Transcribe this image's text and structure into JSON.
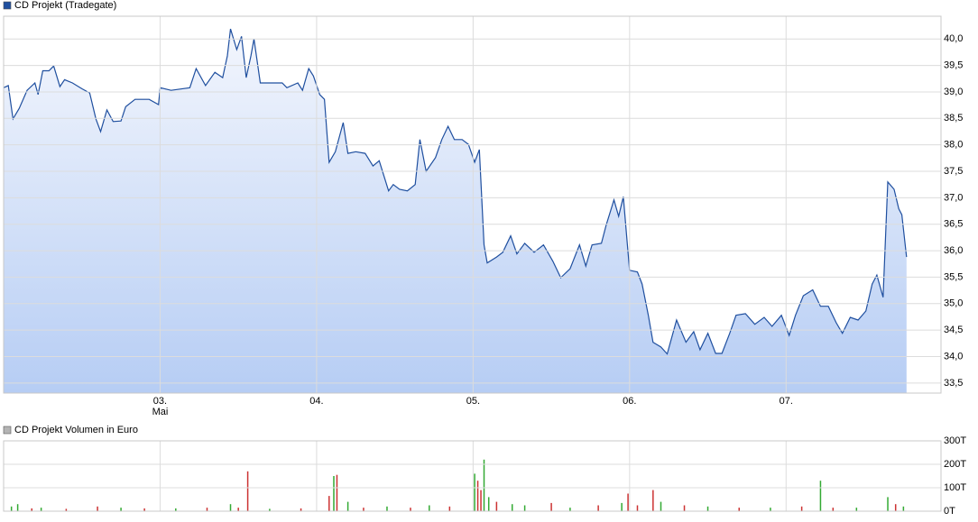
{
  "chart_data": [
    {
      "type": "area",
      "series": [
        {
          "name": "CD Projekt (Tradegate)",
          "color": "#1f4f9f",
          "x": [
            2.0,
            2.03,
            2.06,
            2.1,
            2.15,
            2.2,
            2.22,
            2.25,
            2.29,
            2.32,
            2.36,
            2.39,
            2.44,
            2.5,
            2.55,
            2.59,
            2.62,
            2.66,
            2.7,
            2.75,
            2.78,
            2.84,
            2.93,
            2.99,
            3.0,
            3.07,
            3.19,
            3.23,
            3.29,
            3.35,
            3.4,
            3.43,
            3.45,
            3.49,
            3.52,
            3.55,
            3.58,
            3.6,
            3.64,
            3.71,
            3.78,
            3.81,
            3.88,
            3.91,
            3.95,
            3.98,
            4.02,
            4.05,
            4.08,
            4.12,
            4.17,
            4.2,
            4.25,
            4.31,
            4.36,
            4.4,
            4.46,
            4.49,
            4.53,
            4.58,
            4.63,
            4.66,
            4.7,
            4.76,
            4.8,
            4.84,
            4.88,
            4.93,
            4.97,
            5.01,
            5.04,
            5.07,
            5.09,
            5.15,
            5.19,
            5.24,
            5.28,
            5.33,
            5.39,
            5.45,
            5.51,
            5.56,
            5.62,
            5.68,
            5.72,
            5.76,
            5.82,
            5.85,
            5.9,
            5.93,
            5.96,
            5.98,
            6.0,
            6.05,
            6.08,
            6.12,
            6.15,
            6.2,
            6.24,
            6.3,
            6.36,
            6.41,
            6.45,
            6.5,
            6.55,
            6.59,
            6.64,
            6.68,
            6.74,
            6.8,
            6.86,
            6.91,
            6.97,
            7.02,
            7.06,
            7.11,
            7.17,
            7.22,
            7.27,
            7.32,
            7.36,
            7.41,
            7.46,
            7.51,
            7.55,
            7.58,
            7.62,
            7.65,
            7.69,
            7.72,
            7.74,
            7.77
          ],
          "values": [
            39.08,
            39.12,
            38.49,
            38.69,
            39.03,
            39.17,
            38.95,
            39.4,
            39.4,
            39.49,
            39.1,
            39.23,
            39.17,
            39.06,
            38.98,
            38.49,
            38.25,
            38.66,
            38.44,
            38.45,
            38.72,
            38.86,
            38.86,
            38.76,
            39.08,
            39.03,
            39.08,
            39.44,
            39.12,
            39.37,
            39.27,
            39.68,
            40.19,
            39.8,
            40.05,
            39.27,
            39.68,
            40.0,
            39.17,
            39.17,
            39.17,
            39.08,
            39.17,
            39.03,
            39.44,
            39.3,
            38.95,
            38.86,
            37.67,
            37.87,
            38.42,
            37.84,
            37.87,
            37.84,
            37.6,
            37.7,
            37.13,
            37.25,
            37.16,
            37.13,
            37.25,
            38.1,
            37.5,
            37.76,
            38.1,
            38.35,
            38.1,
            38.1,
            38.01,
            37.67,
            37.91,
            36.11,
            35.77,
            35.88,
            35.97,
            36.28,
            35.94,
            36.14,
            35.97,
            36.11,
            35.8,
            35.49,
            35.66,
            36.11,
            35.71,
            36.11,
            36.14,
            36.48,
            36.96,
            36.65,
            37.02,
            36.31,
            35.63,
            35.6,
            35.37,
            34.78,
            34.27,
            34.18,
            34.05,
            34.69,
            34.27,
            34.47,
            34.13,
            34.44,
            34.06,
            34.06,
            34.44,
            34.78,
            34.81,
            34.61,
            34.74,
            34.57,
            34.78,
            34.4,
            34.78,
            35.15,
            35.26,
            34.95,
            34.95,
            34.64,
            34.44,
            34.74,
            34.69,
            34.86,
            35.37,
            35.54,
            35.12,
            37.3,
            37.16,
            36.79,
            36.68,
            35.88
          ]
        }
      ],
      "xlim": [
        2.0,
        7.99
      ],
      "xticks": [
        {
          "value": 3,
          "label": "03."
        },
        {
          "value": 4,
          "label": "04."
        },
        {
          "value": 5,
          "label": "05."
        },
        {
          "value": 6,
          "label": "06."
        },
        {
          "value": 7,
          "label": "07."
        }
      ],
      "x_sublabel": "Mai",
      "ylim": [
        33.31,
        40.43
      ],
      "yticks": [
        {
          "value": 33.5,
          "label": "33,5"
        },
        {
          "value": 34,
          "label": "34,0"
        },
        {
          "value": 34.5,
          "label": "34,5"
        },
        {
          "value": 35,
          "label": "35,0"
        },
        {
          "value": 35.5,
          "label": "35,5"
        },
        {
          "value": 36,
          "label": "36,0"
        },
        {
          "value": 36.5,
          "label": "36,5"
        },
        {
          "value": 37,
          "label": "37,0"
        },
        {
          "value": 37.5,
          "label": "37,5"
        },
        {
          "value": 38,
          "label": "38,0"
        },
        {
          "value": 38.5,
          "label": "38,5"
        },
        {
          "value": 39,
          "label": "39,0"
        },
        {
          "value": 39.5,
          "label": "39,5"
        },
        {
          "value": 40,
          "label": "40,0"
        }
      ],
      "grid": true
    },
    {
      "type": "bar",
      "series": [
        {
          "name": "CD Projekt Volumen in Euro",
          "color": "#b4b4b4",
          "x": [
            2.05,
            2.09,
            2.18,
            2.24,
            2.4,
            2.6,
            2.75,
            2.9,
            3.1,
            3.3,
            3.45,
            3.5,
            3.56,
            3.7,
            3.9,
            4.08,
            4.11,
            4.13,
            4.2,
            4.3,
            4.45,
            4.6,
            4.72,
            4.85,
            5.01,
            5.03,
            5.05,
            5.07,
            5.1,
            5.15,
            5.25,
            5.33,
            5.5,
            5.62,
            5.8,
            5.95,
            5.99,
            6.05,
            6.15,
            6.2,
            6.35,
            6.5,
            6.7,
            6.9,
            7.1,
            7.22,
            7.3,
            7.45,
            7.65,
            7.7,
            7.75
          ],
          "values": [
            20,
            30,
            12,
            15,
            10,
            20,
            15,
            12,
            12,
            15,
            30,
            15,
            170,
            10,
            12,
            65,
            150,
            155,
            40,
            15,
            20,
            15,
            25,
            20,
            160,
            130,
            90,
            220,
            60,
            40,
            30,
            25,
            35,
            15,
            25,
            35,
            75,
            25,
            90,
            40,
            25,
            20,
            15,
            15,
            20,
            130,
            15,
            15,
            60,
            30,
            20
          ],
          "colors": [
            "#33aa33",
            "#33aa33",
            "#cc3333",
            "#33aa33",
            "#cc3333",
            "#cc3333",
            "#33aa33",
            "#cc3333",
            "#33aa33",
            "#cc3333",
            "#33aa33",
            "#cc3333",
            "#cc3333",
            "#33aa33",
            "#cc3333",
            "#cc3333",
            "#33aa33",
            "#cc3333",
            "#33aa33",
            "#cc3333",
            "#33aa33",
            "#cc3333",
            "#33aa33",
            "#cc3333",
            "#33aa33",
            "#cc3333",
            "#cc3333",
            "#33aa33",
            "#33aa33",
            "#cc3333",
            "#33aa33",
            "#33aa33",
            "#cc3333",
            "#33aa33",
            "#cc3333",
            "#33aa33",
            "#cc3333",
            "#cc3333",
            "#cc3333",
            "#33aa33",
            "#cc3333",
            "#33aa33",
            "#cc3333",
            "#33aa33",
            "#cc3333",
            "#33aa33",
            "#cc3333",
            "#33aa33",
            "#33aa33",
            "#cc3333",
            "#33aa33"
          ]
        }
      ],
      "xlim": [
        2.0,
        7.99
      ],
      "xticks": [
        3,
        4,
        5,
        6,
        7
      ],
      "ylim": [
        0,
        300
      ],
      "yticks": [
        {
          "value": 0,
          "label": "0T"
        },
        {
          "value": 100,
          "label": "100T"
        },
        {
          "value": 200,
          "label": "200T"
        },
        {
          "value": 300,
          "label": "300T"
        }
      ],
      "grid": true
    }
  ]
}
